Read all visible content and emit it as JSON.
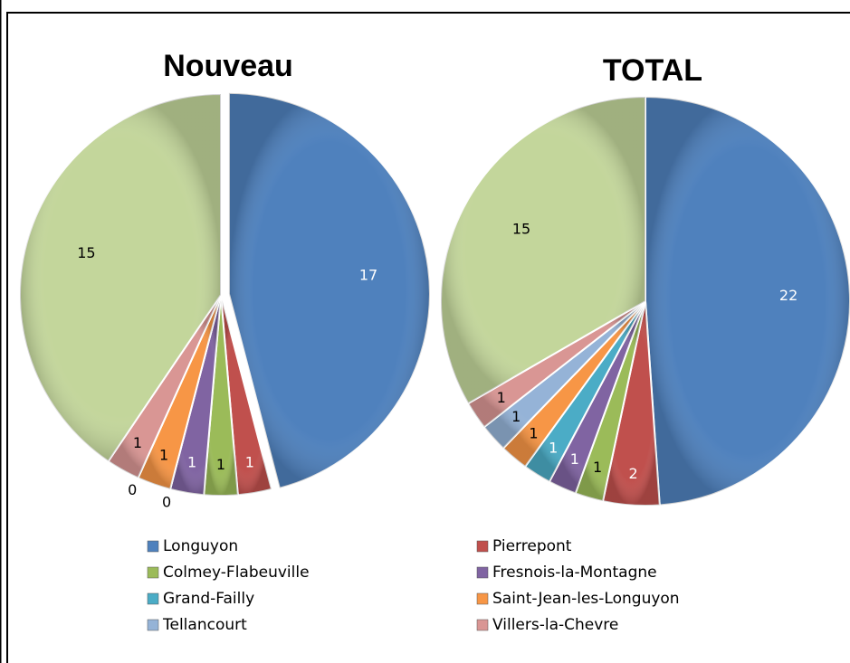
{
  "chart_data": [
    {
      "type": "pie",
      "title": "Nouveau",
      "categories": [
        "Longuyon",
        "Pierrepont",
        "Colmey-Flabeuville",
        "Fresnois-la-Montagne",
        "Grand-Failly",
        "Saint-Jean-les-Longuyon",
        "Tellancourt",
        "Villers-la-Chevre",
        null
      ],
      "values": [
        17,
        1,
        1,
        1,
        0,
        1,
        0,
        1,
        15
      ],
      "colors": [
        "#4f81bd",
        "#c0504d",
        "#9bbb59",
        "#8064a2",
        "#4bacc6",
        "#f79646",
        "#95b3d7",
        "#d99694",
        "#c3d69b"
      ],
      "exploded": [
        0
      ]
    },
    {
      "type": "pie",
      "title": "TOTAL",
      "categories": [
        "Longuyon",
        "Pierrepont",
        "Colmey-Flabeuville",
        "Fresnois-la-Montagne",
        "Grand-Failly",
        "Saint-Jean-les-Longuyon",
        "Tellancourt",
        "Villers-la-Chevre",
        null
      ],
      "values": [
        22,
        2,
        1,
        1,
        1,
        1,
        1,
        1,
        15
      ],
      "colors": [
        "#4f81bd",
        "#c0504d",
        "#9bbb59",
        "#8064a2",
        "#4bacc6",
        "#f79646",
        "#95b3d7",
        "#d99694",
        "#c3d69b"
      ],
      "exploded": []
    }
  ]
}
